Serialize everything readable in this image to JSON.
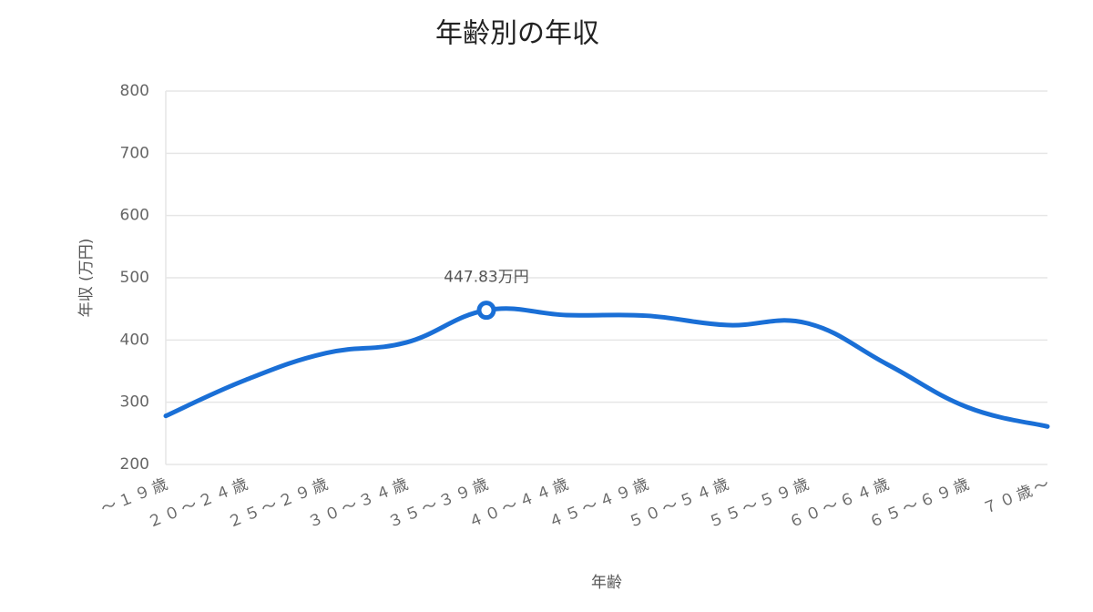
{
  "chart_data": {
    "type": "line",
    "title": "年齢別の年収",
    "x_label": "年齢",
    "y_label": "年収 (万円)",
    "categories": [
      "～１９歳",
      "２０～２４歳",
      "２５～２９歳",
      "３０～３４歳",
      "３５～３９歳",
      "４０～４４歳",
      "４５～４９歳",
      "５０～５４歳",
      "５５～５９歳",
      "６０～６４歳",
      "６５～６９歳",
      "７０歳～"
    ],
    "series": [
      {
        "name": "年収",
        "color": "#1a6fd6",
        "values": [
          278,
          336,
          379,
          396,
          447.83,
          440,
          439,
          424,
          427,
          361,
          292,
          261
        ],
        "value_labels": [
          null,
          null,
          null,
          null,
          "447.83万円",
          null,
          null,
          null,
          null,
          null,
          null,
          null
        ]
      }
    ],
    "ylim": [
      200,
      800
    ],
    "yticks": [
      200,
      300,
      400,
      500,
      600,
      700,
      800
    ],
    "grid": true
  }
}
